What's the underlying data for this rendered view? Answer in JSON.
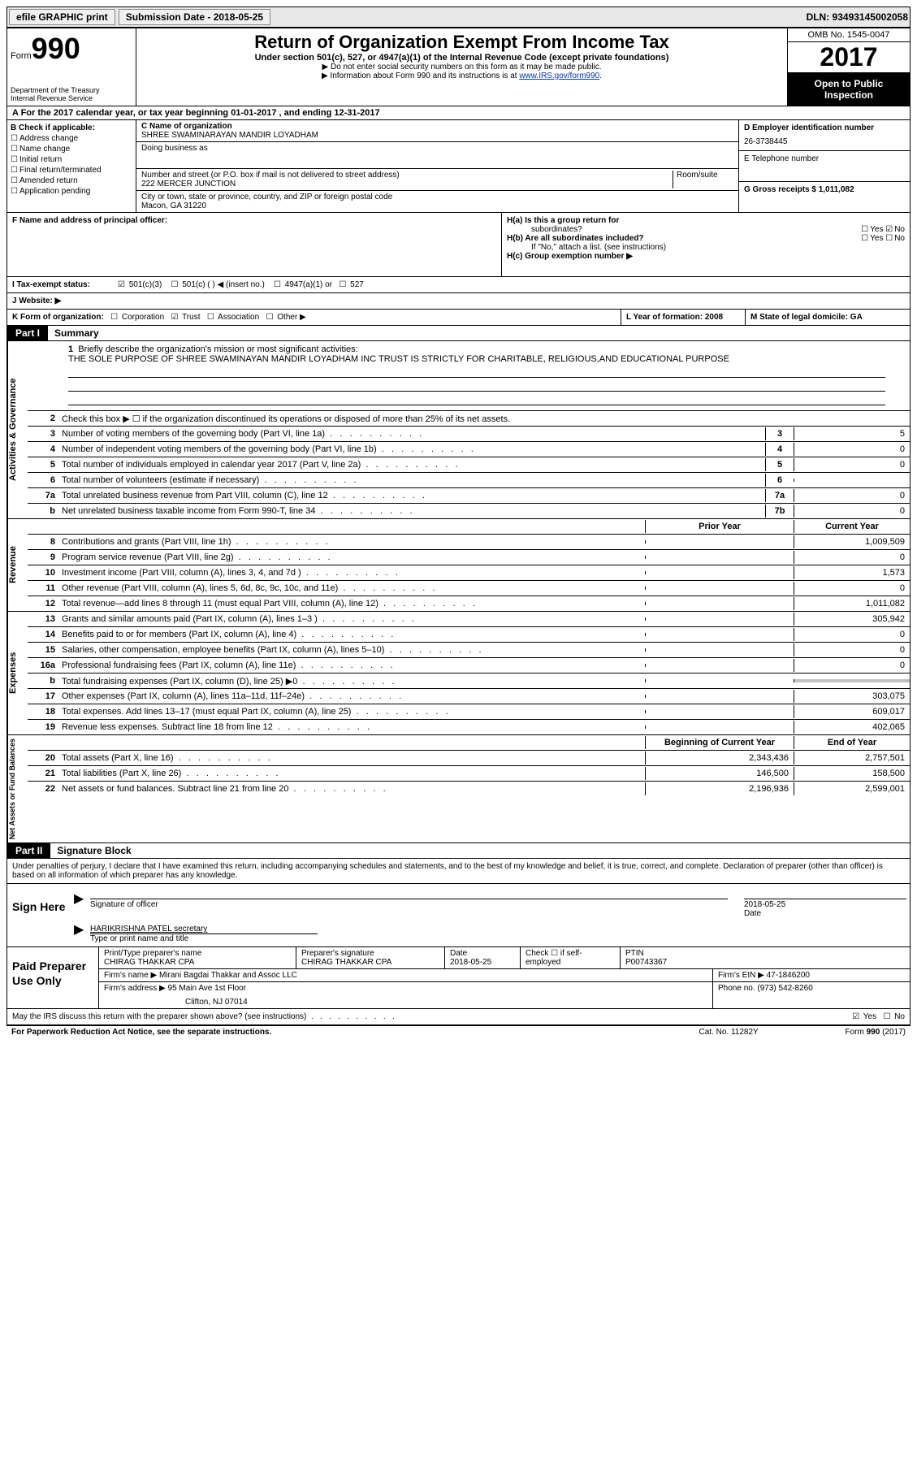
{
  "topbar": {
    "efile": "efile GRAPHIC print",
    "submission_label": "Submission Date - 2018-05-25",
    "dln": "DLN: 93493145002058"
  },
  "header": {
    "form_label": "Form",
    "form_num": "990",
    "dept1": "Department of the Treasury",
    "dept2": "Internal Revenue Service",
    "title": "Return of Organization Exempt From Income Tax",
    "sub": "Under section 501(c), 527, or 4947(a)(1) of the Internal Revenue Code (except private foundations)",
    "note1": "▶ Do not enter social security numbers on this form as it may be made public.",
    "note2_pre": "▶ Information about Form 990 and its instructions is at ",
    "note2_link": "www.IRS.gov/form990",
    "omb": "OMB No. 1545-0047",
    "year": "2017",
    "open1": "Open to Public",
    "open2": "Inspection"
  },
  "rowA": "A  For the 2017 calendar year, or tax year beginning 01-01-2017   , and ending 12-31-2017",
  "secB": {
    "title": "B Check if applicable:",
    "opts": [
      "Address change",
      "Name change",
      "Initial return",
      "Final return/terminated",
      "Amended return",
      "Application pending"
    ]
  },
  "secC": {
    "name_label": "C Name of organization",
    "name": "SHREE SWAMINARAYAN MANDIR LOYADHAM",
    "dba_label": "Doing business as",
    "addr_label": "Number and street (or P.O. box if mail is not delivered to street address)",
    "room_label": "Room/suite",
    "addr": "222 MERCER JUNCTION",
    "city_label": "City or town, state or province, country, and ZIP or foreign postal code",
    "city": "Macon, GA  31220"
  },
  "secD": {
    "ein_label": "D Employer identification number",
    "ein": "26-3738445",
    "tel_label": "E Telephone number",
    "gross_label": "G Gross receipts $ 1,011,082"
  },
  "secF": {
    "label": "F  Name and address of principal officer:"
  },
  "secH": {
    "a": "H(a)  Is this a group return for",
    "a2": "subordinates?",
    "yes": "Yes",
    "no": "No",
    "b": "H(b) Are all subordinates included?",
    "b2": "If \"No,\" attach a list. (see instructions)",
    "c": "H(c)  Group exemption number ▶"
  },
  "secI": {
    "label": "I  Tax-exempt status:",
    "o1": "501(c)(3)",
    "o2": "501(c) (  ) ◀ (insert no.)",
    "o3": "4947(a)(1) or",
    "o4": "527"
  },
  "secJ": {
    "label": "J  Website: ▶"
  },
  "secK": {
    "label": "K Form of organization:",
    "o1": "Corporation",
    "o2": "Trust",
    "o3": "Association",
    "o4": "Other ▶",
    "l": "L Year of formation: 2008",
    "m": "M State of legal domicile: GA"
  },
  "part1": {
    "tag": "Part I",
    "title": "Summary"
  },
  "summary1": {
    "label": "1",
    "text": "Briefly describe the organization's mission or most significant activities:",
    "body": "THE SOLE PURPOSE OF SHREE SWAMINAYAN MANDIR LOYADHAM INC TRUST IS STRICTLY FOR CHARITABLE, RELIGIOUS,AND EDUCATIONAL PURPOSE"
  },
  "gov_rows": [
    {
      "n": "2",
      "d": "Check this box ▶ ☐  if the organization discontinued its operations or disposed of more than 25% of its net assets.",
      "box": "",
      "v": ""
    },
    {
      "n": "3",
      "d": "Number of voting members of the governing body (Part VI, line 1a)",
      "box": "3",
      "v": "5"
    },
    {
      "n": "4",
      "d": "Number of independent voting members of the governing body (Part VI, line 1b)",
      "box": "4",
      "v": "0"
    },
    {
      "n": "5",
      "d": "Total number of individuals employed in calendar year 2017 (Part V, line 2a)",
      "box": "5",
      "v": "0"
    },
    {
      "n": "6",
      "d": "Total number of volunteers (estimate if necessary)",
      "box": "6",
      "v": ""
    },
    {
      "n": "7a",
      "d": "Total unrelated business revenue from Part VIII, column (C), line 12",
      "box": "7a",
      "v": "0"
    },
    {
      "n": "b",
      "d": "Net unrelated business taxable income from Form 990-T, line 34",
      "box": "7b",
      "v": "0"
    }
  ],
  "rev_header": {
    "prior": "Prior Year",
    "curr": "Current Year"
  },
  "rev_rows": [
    {
      "n": "8",
      "d": "Contributions and grants (Part VIII, line 1h)",
      "p": "",
      "c": "1,009,509"
    },
    {
      "n": "9",
      "d": "Program service revenue (Part VIII, line 2g)",
      "p": "",
      "c": "0"
    },
    {
      "n": "10",
      "d": "Investment income (Part VIII, column (A), lines 3, 4, and 7d )",
      "p": "",
      "c": "1,573"
    },
    {
      "n": "11",
      "d": "Other revenue (Part VIII, column (A), lines 5, 6d, 8c, 9c, 10c, and 11e)",
      "p": "",
      "c": "0"
    },
    {
      "n": "12",
      "d": "Total revenue—add lines 8 through 11 (must equal Part VIII, column (A), line 12)",
      "p": "",
      "c": "1,011,082"
    }
  ],
  "exp_rows": [
    {
      "n": "13",
      "d": "Grants and similar amounts paid (Part IX, column (A), lines 1–3 )",
      "p": "",
      "c": "305,942"
    },
    {
      "n": "14",
      "d": "Benefits paid to or for members (Part IX, column (A), line 4)",
      "p": "",
      "c": "0"
    },
    {
      "n": "15",
      "d": "Salaries, other compensation, employee benefits (Part IX, column (A), lines 5–10)",
      "p": "",
      "c": "0"
    },
    {
      "n": "16a",
      "d": "Professional fundraising fees (Part IX, column (A), line 11e)",
      "p": "",
      "c": "0"
    },
    {
      "n": "b",
      "d": "Total fundraising expenses (Part IX, column (D), line 25) ▶0",
      "p": "shaded",
      "c": "shaded"
    },
    {
      "n": "17",
      "d": "Other expenses (Part IX, column (A), lines 11a–11d, 11f–24e)",
      "p": "",
      "c": "303,075"
    },
    {
      "n": "18",
      "d": "Total expenses. Add lines 13–17 (must equal Part IX, column (A), line 25)",
      "p": "",
      "c": "609,017"
    },
    {
      "n": "19",
      "d": "Revenue less expenses. Subtract line 18 from line 12",
      "p": "",
      "c": "402,065"
    }
  ],
  "net_header": {
    "prior": "Beginning of Current Year",
    "curr": "End of Year"
  },
  "net_rows": [
    {
      "n": "20",
      "d": "Total assets (Part X, line 16)",
      "p": "2,343,436",
      "c": "2,757,501"
    },
    {
      "n": "21",
      "d": "Total liabilities (Part X, line 26)",
      "p": "146,500",
      "c": "158,500"
    },
    {
      "n": "22",
      "d": "Net assets or fund balances. Subtract line 21 from line 20",
      "p": "2,196,936",
      "c": "2,599,001"
    }
  ],
  "side_labels": {
    "gov": "Activities & Governance",
    "rev": "Revenue",
    "exp": "Expenses",
    "net": "Net Assets or Fund Balances"
  },
  "part2": {
    "tag": "Part II",
    "title": "Signature Block"
  },
  "sig_text": "Under penalties of perjury, I declare that I have examined this return, including accompanying schedules and statements, and to the best of my knowledge and belief, it is true, correct, and complete. Declaration of preparer (other than officer) is based on all information of which preparer has any knowledge.",
  "sign": {
    "label": "Sign Here",
    "sig_of_officer": "Signature of officer",
    "date_label": "Date",
    "date": "2018-05-25",
    "name": "HARIKRISHNA PATEL secretary",
    "name_label": "Type or print name and title"
  },
  "prep": {
    "label": "Paid Preparer Use Only",
    "r1": {
      "c1l": "Print/Type preparer's name",
      "c1": "CHIRAG THAKKAR CPA",
      "c2l": "Preparer's signature",
      "c2": "CHIRAG THAKKAR CPA",
      "c3l": "Date",
      "c3": "2018-05-25",
      "c4": "Check ☐ if self-employed",
      "c5l": "PTIN",
      "c5": "P00743367"
    },
    "r2": {
      "l": "Firm's name      ▶",
      "v": "Mirani Bagdai Thakkar and Assoc LLC",
      "einl": "Firm's EIN ▶",
      "ein": "47-1846200"
    },
    "r3": {
      "l": "Firm's address ▶",
      "v": "95 Main Ave 1st Floor",
      "phl": "Phone no.",
      "ph": "(973) 542-8260"
    },
    "r3b": "Clifton, NJ  07014"
  },
  "discuss": {
    "text": "May the IRS discuss this return with the preparer shown above? (see instructions)",
    "yes": "Yes",
    "no": "No"
  },
  "footer": {
    "f1": "For Paperwork Reduction Act Notice, see the separate instructions.",
    "f2": "Cat. No. 11282Y",
    "f3": "Form 990 (2017)"
  }
}
